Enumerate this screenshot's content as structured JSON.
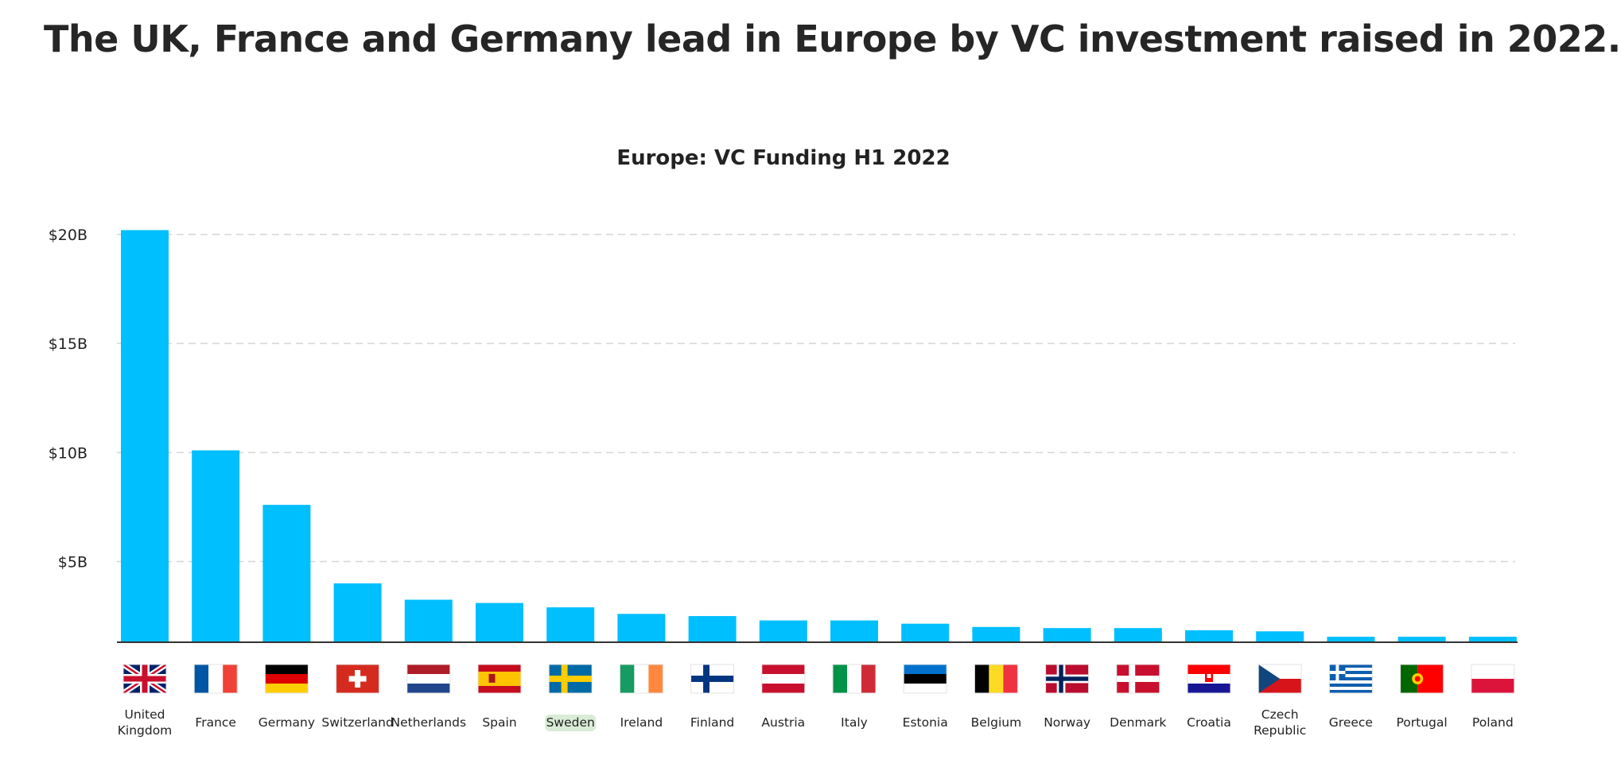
{
  "heading": "The UK, France and Germany lead in Europe by VC investment raised in 2022.",
  "chart_data": {
    "type": "bar",
    "title": "Europe: VC Funding H1 2022",
    "xlabel": "",
    "ylabel": "",
    "ylim": [
      1.3,
      21
    ],
    "yticks": [
      5,
      10,
      15,
      20
    ],
    "ytick_labels": [
      "$5B",
      "$10B",
      "$15B",
      "$20B"
    ],
    "grid": true,
    "bar_color": "#00bfff",
    "highlighted_category": "Sweden",
    "highlight_color": "#d9ecd6",
    "categories": [
      "United Kingdom",
      "France",
      "Germany",
      "Switzerland",
      "Netherlands",
      "Spain",
      "Sweden",
      "Ireland",
      "Finland",
      "Austria",
      "Italy",
      "Estonia",
      "Belgium",
      "Norway",
      "Denmark",
      "Croatia",
      "Czech Republic",
      "Greece",
      "Portugal",
      "Poland"
    ],
    "category_labels": [
      [
        "United",
        "Kingdom"
      ],
      [
        "France"
      ],
      [
        "Germany"
      ],
      [
        "Switzerland"
      ],
      [
        "Netherlands"
      ],
      [
        "Spain"
      ],
      [
        "Sweden"
      ],
      [
        "Ireland"
      ],
      [
        "Finland"
      ],
      [
        "Austria"
      ],
      [
        "Italy"
      ],
      [
        "Estonia"
      ],
      [
        "Belgium"
      ],
      [
        "Norway"
      ],
      [
        "Denmark"
      ],
      [
        "Croatia"
      ],
      [
        "Czech",
        "Republic"
      ],
      [
        "Greece"
      ],
      [
        "Portugal"
      ],
      [
        "Poland"
      ]
    ],
    "values": [
      20.2,
      10.1,
      7.6,
      4.0,
      3.25,
      3.1,
      2.9,
      2.6,
      2.5,
      2.3,
      2.3,
      2.15,
      2.0,
      1.95,
      1.95,
      1.85,
      1.8,
      1.55,
      1.55,
      1.55
    ]
  },
  "flags": [
    {
      "type": "uk",
      "colors": [
        "#012169",
        "#ffffff",
        "#c8102e"
      ]
    },
    {
      "type": "vtri",
      "colors": [
        "#0055a4",
        "#ffffff",
        "#ef4135"
      ]
    },
    {
      "type": "htri",
      "colors": [
        "#000000",
        "#dd0000",
        "#ffce00"
      ]
    },
    {
      "type": "swiss",
      "colors": [
        "#d52b1e",
        "#ffffff"
      ]
    },
    {
      "type": "htri",
      "colors": [
        "#ae1c28",
        "#ffffff",
        "#21468b"
      ]
    },
    {
      "type": "spain",
      "colors": [
        "#c60b1e",
        "#ffc400",
        "#ad1519"
      ]
    },
    {
      "type": "nordic",
      "colors": [
        "#006aa7",
        "#fecc00"
      ]
    },
    {
      "type": "vtri",
      "colors": [
        "#169b62",
        "#ffffff",
        "#ff883e"
      ]
    },
    {
      "type": "nordic",
      "colors": [
        "#ffffff",
        "#003580"
      ]
    },
    {
      "type": "htri",
      "colors": [
        "#c8102e",
        "#ffffff",
        "#c8102e"
      ]
    },
    {
      "type": "vtri",
      "colors": [
        "#009246",
        "#ffffff",
        "#ce2b37"
      ]
    },
    {
      "type": "htri",
      "colors": [
        "#0072ce",
        "#000000",
        "#ffffff"
      ]
    },
    {
      "type": "vtri",
      "colors": [
        "#000000",
        "#fdda24",
        "#ef3340"
      ]
    },
    {
      "type": "nordic2",
      "colors": [
        "#ba0c2f",
        "#ffffff",
        "#00205b"
      ]
    },
    {
      "type": "nordic",
      "colors": [
        "#c8102e",
        "#ffffff"
      ]
    },
    {
      "type": "croatia",
      "colors": [
        "#ff0000",
        "#ffffff",
        "#171796"
      ]
    },
    {
      "type": "czech",
      "colors": [
        "#ffffff",
        "#d7141a",
        "#11457e"
      ]
    },
    {
      "type": "greece",
      "colors": [
        "#0d5eaf",
        "#ffffff"
      ]
    },
    {
      "type": "portugal",
      "colors": [
        "#006600",
        "#ff0000",
        "#ffcc00"
      ]
    },
    {
      "type": "hbi",
      "colors": [
        "#ffffff",
        "#dc143c"
      ]
    }
  ]
}
